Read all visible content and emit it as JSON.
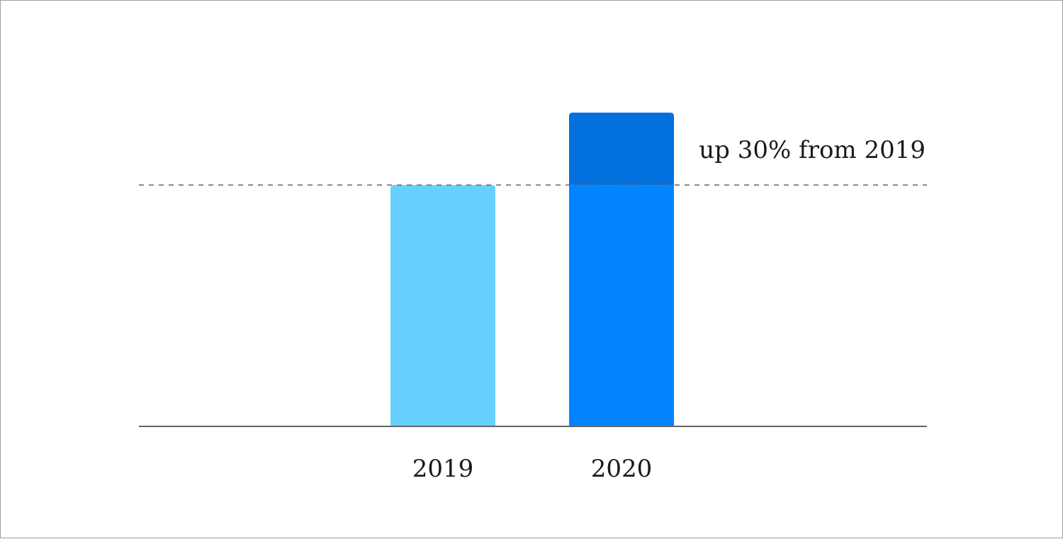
{
  "chart_data": {
    "type": "bar",
    "categories": [
      "2019",
      "2020"
    ],
    "values": [
      100,
      130
    ],
    "ylim": [
      0,
      130
    ],
    "grid": false,
    "reference_line": {
      "value": 100,
      "style": "dashed"
    },
    "annotation": {
      "text": "up 30% from 2019"
    },
    "colors": {
      "bar_2019": "#66d0ff",
      "bar_2020": "#0384ff",
      "bar_2020_increase": "#0271dd",
      "axis": "#666666",
      "reference_line": "#666666"
    }
  }
}
